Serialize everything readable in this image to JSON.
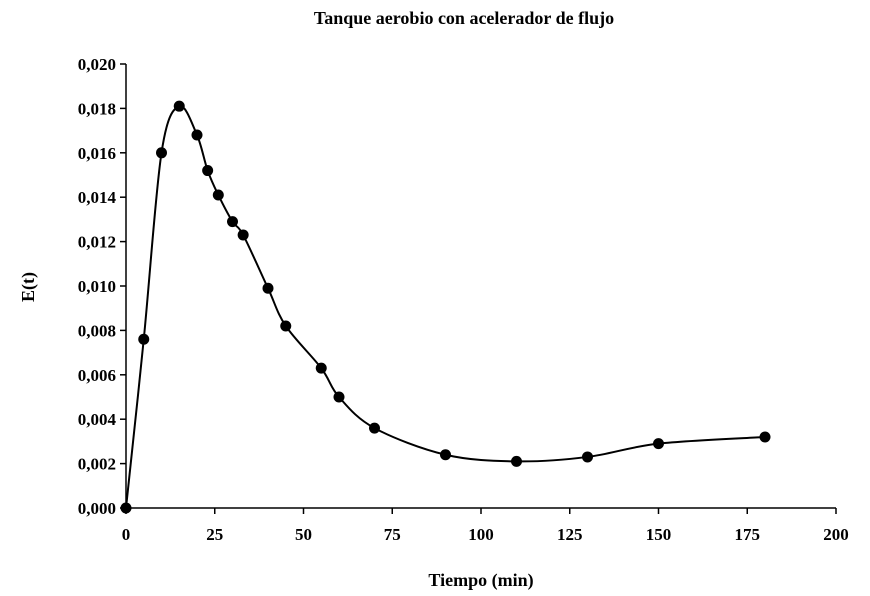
{
  "chart_data": {
    "type": "scatter",
    "title": "Tanque aerobio con acelerador de flujo",
    "xlabel": "Tiempo (min)",
    "ylabel": "E(t)",
    "xlim": [
      0,
      200
    ],
    "ylim": [
      0,
      0.02
    ],
    "x_ticks": [
      0,
      25,
      50,
      75,
      100,
      125,
      150,
      175,
      200
    ],
    "x_tick_labels": [
      "0",
      "25",
      "50",
      "75",
      "100",
      "125",
      "150",
      "175",
      "200"
    ],
    "y_ticks": [
      0,
      0.002,
      0.004,
      0.006,
      0.008,
      0.01,
      0.012,
      0.014,
      0.016,
      0.018,
      0.02
    ],
    "y_tick_labels": [
      "0,000",
      "0,002",
      "0,004",
      "0,006",
      "0,008",
      "0,010",
      "0,012",
      "0,014",
      "0,016",
      "0,018",
      "0,020"
    ],
    "grid": false,
    "smooth_line": true,
    "series": [
      {
        "x": [
          0,
          5,
          10,
          15,
          20,
          23,
          26,
          30,
          33,
          40,
          45,
          55,
          60,
          70,
          90,
          110,
          130,
          150,
          180
        ],
        "y": [
          0.0,
          0.0076,
          0.016,
          0.0181,
          0.0168,
          0.0152,
          0.0141,
          0.0129,
          0.0123,
          0.0099,
          0.0082,
          0.0063,
          0.005,
          0.0036,
          0.0024,
          0.0021,
          0.0023,
          0.0029,
          0.0032
        ]
      }
    ]
  }
}
